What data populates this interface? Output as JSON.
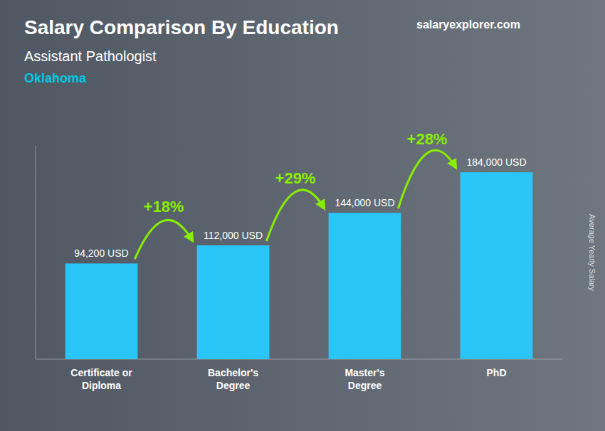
{
  "chart_data": {
    "type": "bar",
    "title": "Salary Comparison By Education",
    "subtitle": [
      "Assistant Pathologist",
      "Oklahoma"
    ],
    "ylabel": "Average Yearly Salary",
    "annotations": [
      "+18%",
      "+29%",
      "+28%",
      "salaryexplorer.com"
    ],
    "categories": [
      "Certificate or\nDiploma",
      "Bachelor's\nDegree",
      "Master's\nDegree",
      "PhD"
    ],
    "values": [
      94200,
      112000,
      144000,
      184000
    ],
    "value_labels": [
      "94,200 USD",
      "112,000 USD",
      "144,000 USD",
      "184,000 USD"
    ],
    "color": "#29c5f6",
    "ylim": [
      0,
      210000
    ],
    "data_labels": true,
    "tick_labels": false,
    "grid": false
  }
}
